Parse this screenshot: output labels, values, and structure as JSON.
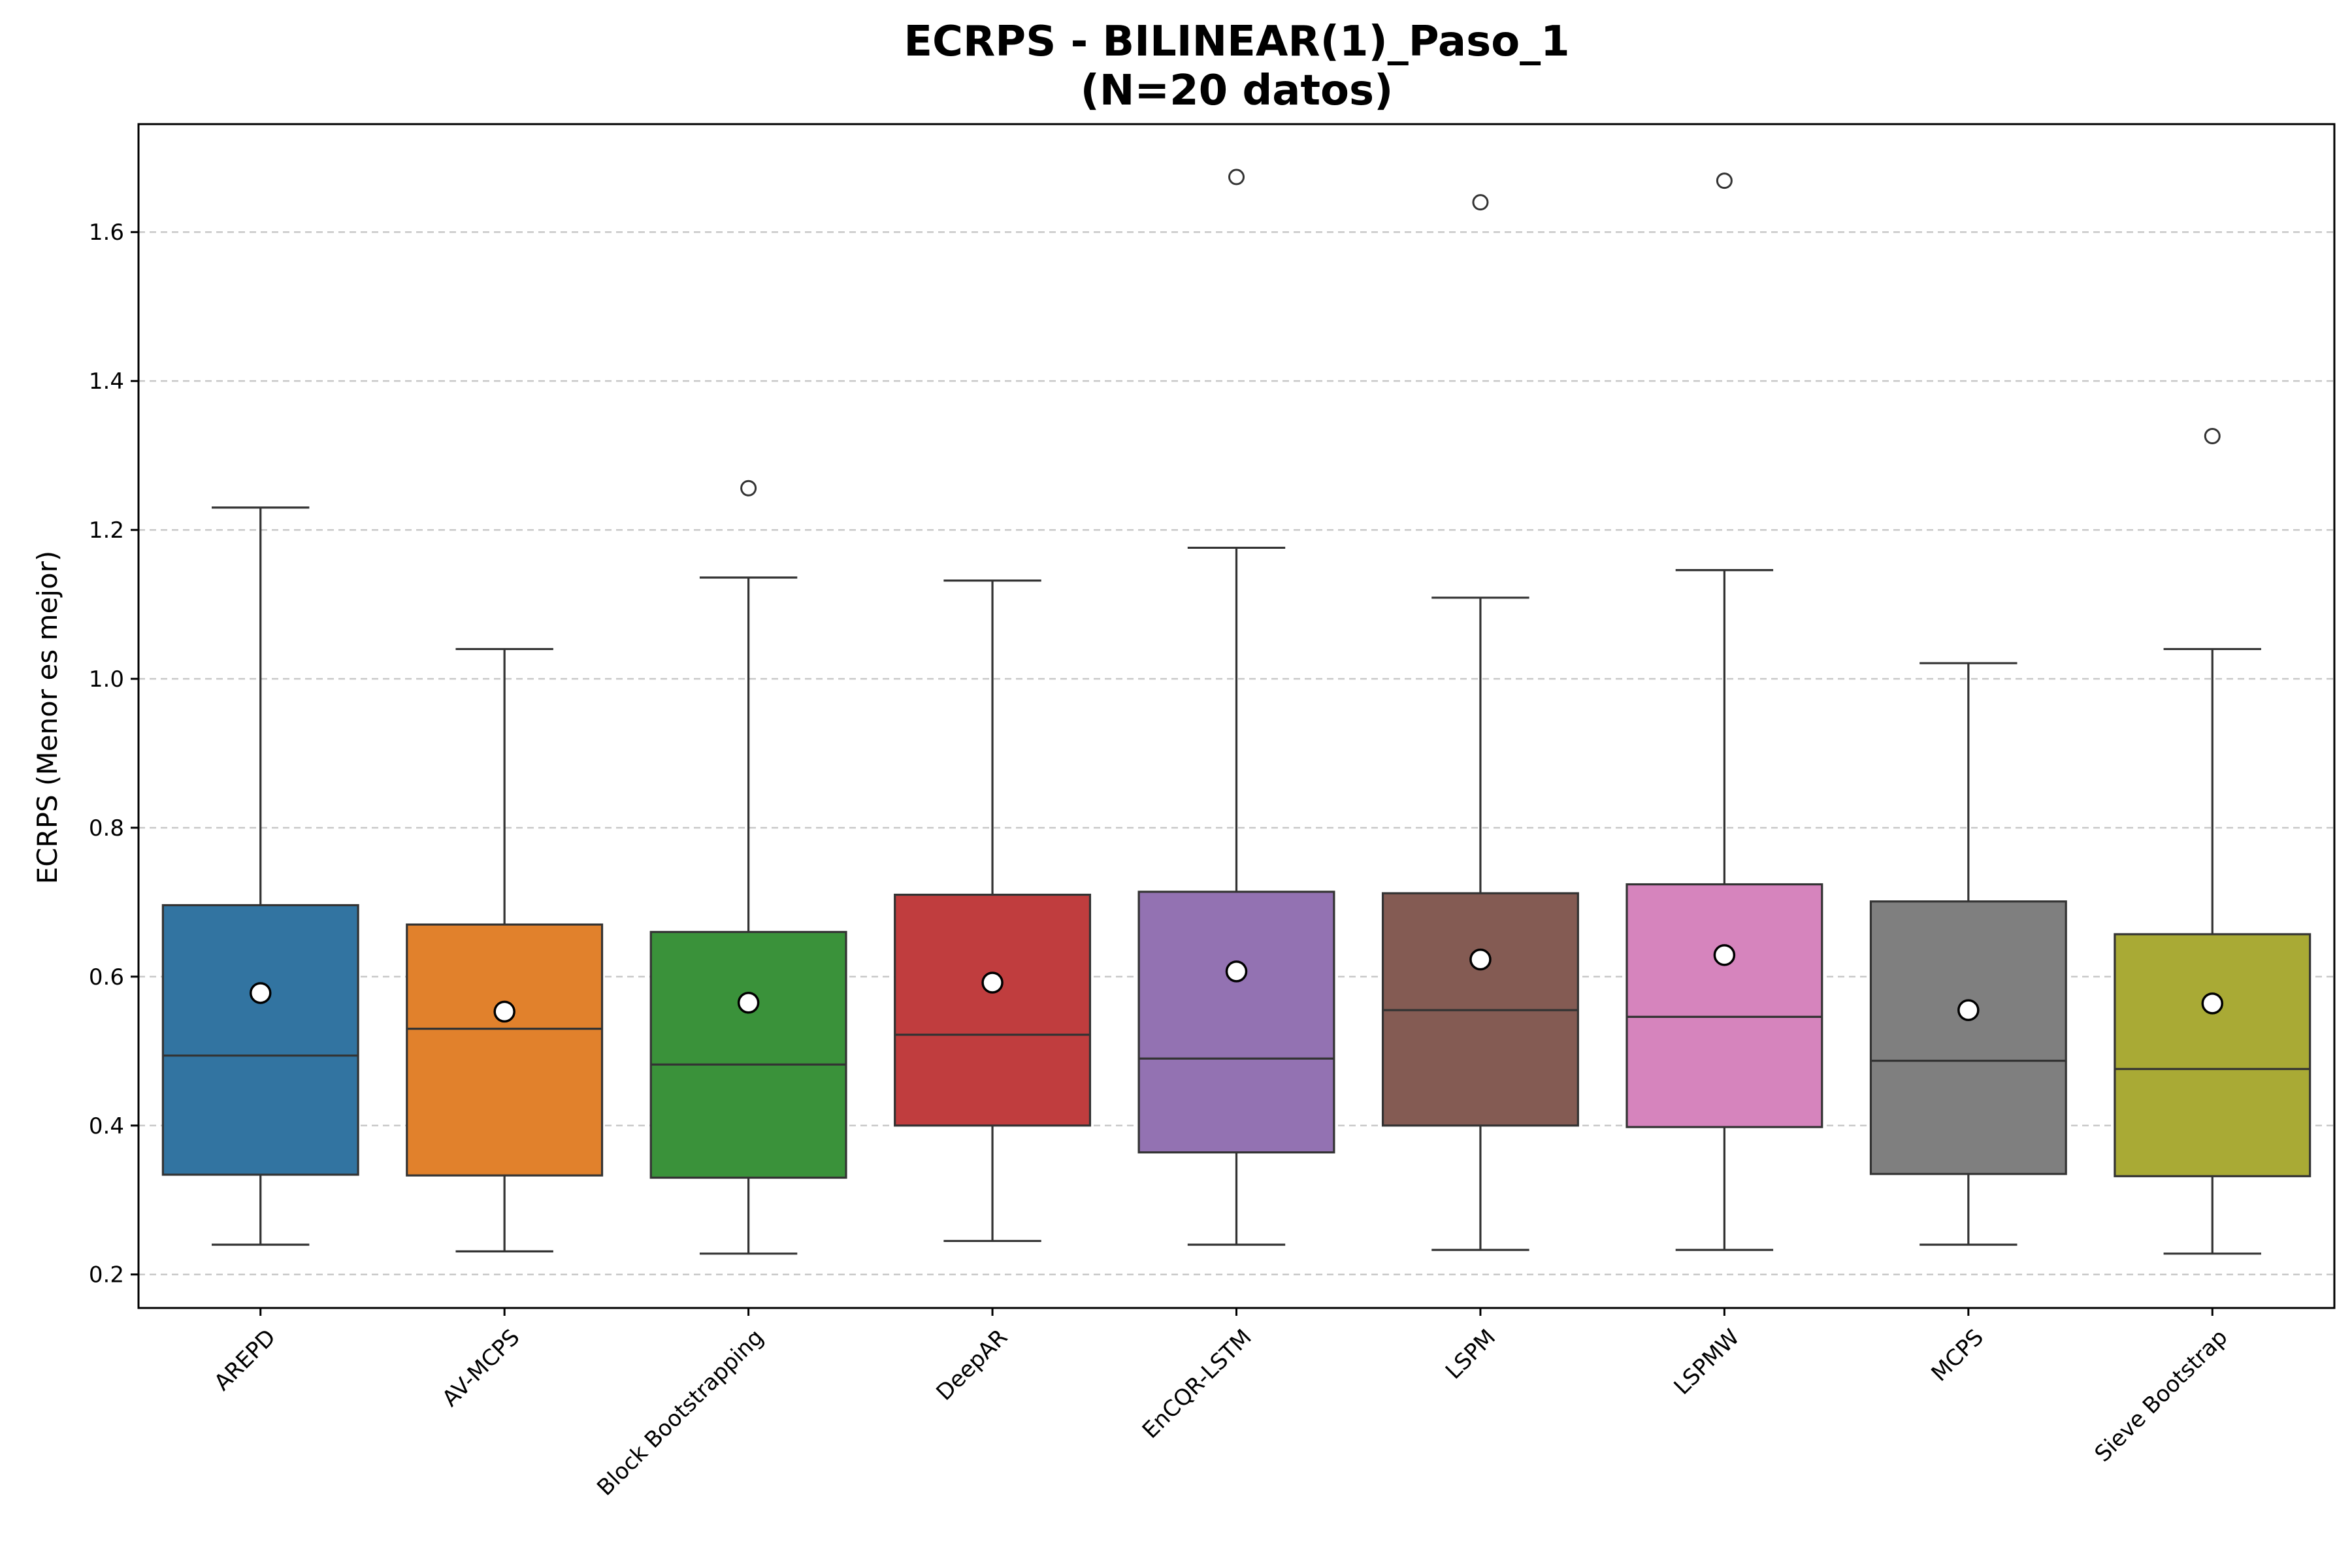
{
  "chart_data": {
    "type": "box",
    "title_lines": [
      "ECRPS - BILINEAR(1)_Paso_1",
      "(N=20 datos)"
    ],
    "xlabel": "",
    "ylabel": "ECRPS (Menor es mejor)",
    "ylim": [
      0.155,
      1.745
    ],
    "yticks": [
      0.2,
      0.4,
      0.6,
      0.8,
      1.0,
      1.2,
      1.4,
      1.6
    ],
    "ytick_labels": [
      "0.2",
      "0.4",
      "0.6",
      "0.8",
      "1.0",
      "1.2",
      "1.4",
      "1.6"
    ],
    "grid": "y-dashed",
    "categories": [
      "AREPD",
      "AV-MCPS",
      "Block Bootstrapping",
      "DeepAR",
      "EnCQR-LSTM",
      "LSPM",
      "LSPMW",
      "MCPS",
      "Sieve Bootstrap"
    ],
    "colors": [
      "#3274a1",
      "#e1812c",
      "#3a923a",
      "#c03d3e",
      "#9372b2",
      "#845b53",
      "#d684bd",
      "#7f7f7f",
      "#a9aa35"
    ],
    "boxes": [
      {
        "whisker_low": 0.24,
        "q1": 0.334,
        "median": 0.494,
        "q3": 0.696,
        "whisker_high": 1.23,
        "mean": 0.578,
        "outliers": []
      },
      {
        "whisker_low": 0.231,
        "q1": 0.333,
        "median": 0.53,
        "q3": 0.67,
        "whisker_high": 1.04,
        "mean": 0.553,
        "outliers": []
      },
      {
        "whisker_low": 0.228,
        "q1": 0.33,
        "median": 0.482,
        "q3": 0.66,
        "whisker_high": 1.136,
        "mean": 0.565,
        "outliers": [
          1.256
        ]
      },
      {
        "whisker_low": 0.245,
        "q1": 0.4,
        "median": 0.522,
        "q3": 0.71,
        "whisker_high": 1.132,
        "mean": 0.592,
        "outliers": []
      },
      {
        "whisker_low": 0.24,
        "q1": 0.364,
        "median": 0.49,
        "q3": 0.714,
        "whisker_high": 1.176,
        "mean": 0.607,
        "outliers": [
          1.674
        ]
      },
      {
        "whisker_low": 0.233,
        "q1": 0.4,
        "median": 0.555,
        "q3": 0.712,
        "whisker_high": 1.109,
        "mean": 0.623,
        "outliers": [
          1.64
        ]
      },
      {
        "whisker_low": 0.233,
        "q1": 0.398,
        "median": 0.546,
        "q3": 0.724,
        "whisker_high": 1.146,
        "mean": 0.629,
        "outliers": [
          1.669
        ]
      },
      {
        "whisker_low": 0.24,
        "q1": 0.335,
        "median": 0.487,
        "q3": 0.701,
        "whisker_high": 1.021,
        "mean": 0.555,
        "outliers": []
      },
      {
        "whisker_low": 0.228,
        "q1": 0.332,
        "median": 0.476,
        "q3": 0.657,
        "whisker_high": 1.04,
        "mean": 0.564,
        "outliers": [
          1.326
        ]
      }
    ]
  }
}
